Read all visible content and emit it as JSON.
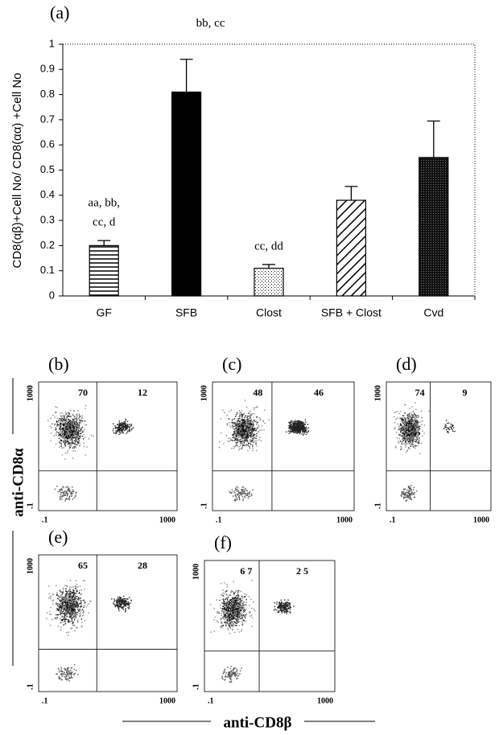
{
  "chart_data": {
    "type": "bar",
    "title": "(a)",
    "y_label": "CD8(αβ)+Cell No/ CD8(αα) +Cell No",
    "categories": [
      "GF",
      "SFB",
      "Clost",
      "SFB + Clost",
      "Cvd"
    ],
    "values": [
      0.2,
      0.81,
      0.11,
      0.38,
      0.55
    ],
    "errors": [
      0.02,
      0.13,
      0.015,
      0.055,
      0.145
    ],
    "annotations": [
      [
        "aa, bb,",
        "cc, d"
      ],
      [
        "bb, cc"
      ],
      [
        "cc, dd"
      ],
      null,
      null
    ],
    "patterns": [
      "hlines",
      "solid",
      "dots",
      "diagonal",
      "dense"
    ],
    "ylim": [
      0,
      1
    ],
    "yticks": [
      0,
      0.1,
      0.2,
      0.3,
      0.4,
      0.5,
      0.6,
      0.7,
      0.8,
      0.9,
      1
    ]
  },
  "panels": [
    {
      "label": "(b)",
      "quadrants": [
        70,
        12
      ]
    },
    {
      "label": "(c)",
      "quadrants": [
        48,
        46
      ]
    },
    {
      "label": "(d)",
      "quadrants": [
        74,
        9
      ]
    },
    {
      "label": "(e)",
      "quadrants": [
        65,
        28
      ]
    },
    {
      "label": "(f)",
      "quadrants": [
        67,
        25
      ],
      "quadrant_labels": [
        "6 7",
        "2 5"
      ]
    }
  ],
  "axis_ticks": {
    "min": {
      "value": 0.1,
      "label": ".1"
    },
    "max": 1000
  },
  "y_axis_label": "anti-CD8α",
  "x_axis_label": "anti-CD8β"
}
